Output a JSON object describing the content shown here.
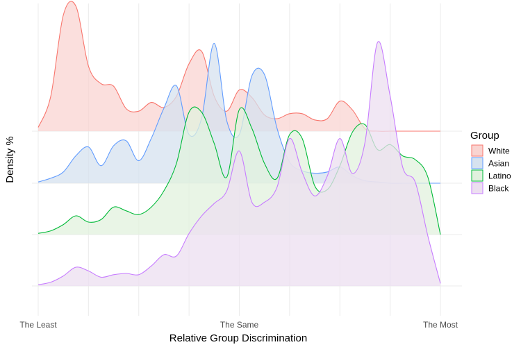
{
  "chart_data": {
    "type": "area",
    "subtype": "ridgeline",
    "title": "",
    "xlabel": "Relative Group Discrimination",
    "ylabel": "Density %",
    "x_ticks": [
      "The Least",
      "The Same",
      "The Most"
    ],
    "x_tick_values": [
      1,
      5,
      9
    ],
    "xlim": [
      1,
      9
    ],
    "grid": true,
    "legend": {
      "title": "Group",
      "position": "right"
    },
    "x": [
      1.0,
      1.25,
      1.5,
      1.75,
      2.0,
      2.25,
      2.5,
      2.75,
      3.0,
      3.25,
      3.5,
      3.75,
      4.0,
      4.25,
      4.5,
      4.75,
      5.0,
      5.25,
      5.5,
      5.75,
      6.0,
      6.25,
      6.5,
      6.75,
      7.0,
      7.25,
      7.5,
      7.75,
      8.0,
      8.25,
      8.5,
      8.75,
      9.0
    ],
    "series": [
      {
        "name": "White",
        "color": "#f8766d",
        "fill": "#f9d4d1",
        "values": [
          0.03,
          0.28,
          0.93,
          1.0,
          0.52,
          0.38,
          0.36,
          0.18,
          0.16,
          0.23,
          0.19,
          0.28,
          0.54,
          0.64,
          0.28,
          0.16,
          0.33,
          0.27,
          0.13,
          0.1,
          0.14,
          0.14,
          0.09,
          0.1,
          0.24,
          0.17,
          0.02,
          0.0,
          0.0,
          0.0,
          0.0,
          0.0,
          0.0
        ]
      },
      {
        "name": "Asian",
        "color": "#619cff",
        "fill": "#d6e2ef",
        "values": [
          0.01,
          0.04,
          0.09,
          0.22,
          0.29,
          0.14,
          0.3,
          0.34,
          0.18,
          0.36,
          0.6,
          0.78,
          0.39,
          0.52,
          1.12,
          0.5,
          0.39,
          0.86,
          0.87,
          0.44,
          0.17,
          0.1,
          0.08,
          0.09,
          0.13,
          0.06,
          0.02,
          0.01,
          0.0,
          0.0,
          0.0,
          0.0,
          0.0
        ]
      },
      {
        "name": "Latino",
        "color": "#00ba38",
        "fill": "#e1f1de",
        "values": [
          0.01,
          0.03,
          0.08,
          0.15,
          0.1,
          0.12,
          0.22,
          0.19,
          0.16,
          0.22,
          0.35,
          0.57,
          0.98,
          0.98,
          0.73,
          0.46,
          1.0,
          0.85,
          0.57,
          0.45,
          0.8,
          0.77,
          0.39,
          0.36,
          0.55,
          0.82,
          0.88,
          0.68,
          0.72,
          0.63,
          0.6,
          0.46,
          0.0
        ]
      },
      {
        "name": "Black",
        "color": "#c77cff",
        "fill": "#ecdff0",
        "values": [
          0.01,
          0.03,
          0.08,
          0.15,
          0.12,
          0.07,
          0.09,
          0.1,
          0.09,
          0.16,
          0.25,
          0.24,
          0.42,
          0.56,
          0.66,
          0.76,
          1.08,
          0.67,
          0.67,
          0.79,
          1.18,
          0.91,
          0.72,
          0.88,
          1.18,
          0.9,
          1.15,
          1.95,
          1.52,
          0.95,
          0.83,
          0.4,
          0.02
        ]
      }
    ]
  }
}
